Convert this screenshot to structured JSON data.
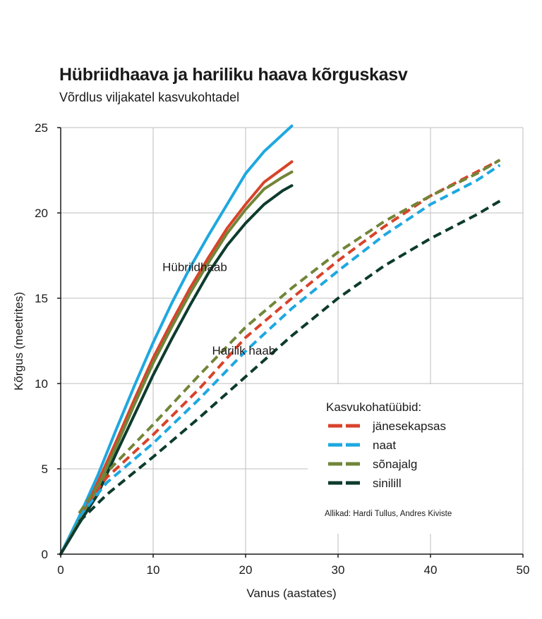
{
  "chart_data": {
    "type": "line",
    "title": "Hübriidhaava ja hariliku haava kõrguskasv",
    "subtitle": "Võrdlus viljakatel kasvukohtadel",
    "xlabel": "Vanus (aastates)",
    "ylabel": "Kõrgus (meetrites)",
    "xlim": [
      0,
      50
    ],
    "ylim": [
      0,
      25
    ],
    "xticks": [
      "0",
      "10",
      "20",
      "30",
      "40",
      "50"
    ],
    "yticks": [
      "0",
      "5",
      "10",
      "15",
      "20",
      "25"
    ],
    "grid": true,
    "legend": {
      "title": "Kasvukohatüübid:",
      "placement": "bottom-right"
    },
    "annotations": [
      {
        "text": "Hübriidhaab",
        "x": 14.5,
        "y": 16.6
      },
      {
        "text": "Harilik haab",
        "x": 19.8,
        "y": 11.7
      }
    ],
    "source": "Allikad: Hardi Tullus, Andres Kiviste",
    "series": [
      {
        "name": "jänesekapsas",
        "group": "Hübriidhaab",
        "color": "#d8432a",
        "style": "solid",
        "points": [
          [
            0,
            0
          ],
          [
            2,
            2
          ],
          [
            4,
            4.2
          ],
          [
            6,
            6.6
          ],
          [
            8,
            9.1
          ],
          [
            10,
            11.5
          ],
          [
            12,
            13.6
          ],
          [
            14,
            15.6
          ],
          [
            16,
            17.4
          ],
          [
            18,
            19.1
          ],
          [
            20,
            20.5
          ],
          [
            22,
            21.8
          ],
          [
            24,
            22.6
          ],
          [
            25,
            23
          ]
        ]
      },
      {
        "name": "naat",
        "group": "Hübriidhaab",
        "color": "#1ea8e0",
        "style": "solid",
        "points": [
          [
            0,
            0
          ],
          [
            2,
            2.2
          ],
          [
            4,
            4.6
          ],
          [
            6,
            7.3
          ],
          [
            8,
            9.9
          ],
          [
            10,
            12.4
          ],
          [
            12,
            14.7
          ],
          [
            14,
            16.8
          ],
          [
            16,
            18.7
          ],
          [
            18,
            20.5
          ],
          [
            20,
            22.3
          ],
          [
            22,
            23.6
          ],
          [
            24,
            24.6
          ],
          [
            25,
            25.1
          ]
        ]
      },
      {
        "name": "sõnajalg",
        "group": "Hübriidhaab",
        "color": "#718538",
        "style": "solid",
        "points": [
          [
            0,
            0
          ],
          [
            2,
            1.9
          ],
          [
            4,
            3.9
          ],
          [
            6,
            6.3
          ],
          [
            8,
            8.8
          ],
          [
            10,
            11.2
          ],
          [
            12,
            13.3
          ],
          [
            14,
            15.3
          ],
          [
            16,
            17.1
          ],
          [
            18,
            18.8
          ],
          [
            20,
            20.2
          ],
          [
            22,
            21.4
          ],
          [
            24,
            22.1
          ],
          [
            25,
            22.4
          ]
        ]
      },
      {
        "name": "sinilill",
        "group": "Hübriidhaab",
        "color": "#0d3b2e",
        "style": "solid",
        "points": [
          [
            0,
            0
          ],
          [
            2,
            1.8
          ],
          [
            4,
            3.5
          ],
          [
            6,
            5.9
          ],
          [
            8,
            8.2
          ],
          [
            10,
            10.5
          ],
          [
            12,
            12.6
          ],
          [
            14,
            14.6
          ],
          [
            16,
            16.5
          ],
          [
            18,
            18.1
          ],
          [
            20,
            19.4
          ],
          [
            22,
            20.5
          ],
          [
            24,
            21.3
          ],
          [
            25,
            21.6
          ]
        ]
      },
      {
        "name": "jänesekapsas",
        "group": "Harilik haab",
        "color": "#d8432a",
        "style": "dashed",
        "points": [
          [
            2,
            2.4
          ],
          [
            5,
            4.5
          ],
          [
            10,
            7
          ],
          [
            15,
            9.7
          ],
          [
            20,
            12.7
          ],
          [
            25,
            15
          ],
          [
            30,
            17.2
          ],
          [
            35,
            19.2
          ],
          [
            40,
            21
          ],
          [
            45,
            22.4
          ],
          [
            47.5,
            23.1
          ]
        ]
      },
      {
        "name": "naat",
        "group": "Harilik haab",
        "color": "#1ea8e0",
        "style": "dashed",
        "points": [
          [
            2,
            2.2
          ],
          [
            5,
            4.2
          ],
          [
            10,
            6.5
          ],
          [
            15,
            9.1
          ],
          [
            20,
            11.9
          ],
          [
            25,
            14.4
          ],
          [
            30,
            16.6
          ],
          [
            35,
            18.7
          ],
          [
            40,
            20.5
          ],
          [
            45,
            21.9
          ],
          [
            47.5,
            22.8
          ]
        ]
      },
      {
        "name": "sõnajalg",
        "group": "Harilik haab",
        "color": "#718538",
        "style": "dashed",
        "points": [
          [
            2,
            2.4
          ],
          [
            5,
            4.8
          ],
          [
            10,
            7.6
          ],
          [
            15,
            10.5
          ],
          [
            20,
            13.3
          ],
          [
            25,
            15.6
          ],
          [
            30,
            17.7
          ],
          [
            35,
            19.5
          ],
          [
            40,
            21
          ],
          [
            45,
            22.3
          ],
          [
            47.5,
            23.1
          ]
        ]
      },
      {
        "name": "sinilill",
        "group": "Harilik haab",
        "color": "#0d3b2e",
        "style": "dashed",
        "points": [
          [
            2,
            1.9
          ],
          [
            5,
            3.5
          ],
          [
            10,
            5.7
          ],
          [
            15,
            8
          ],
          [
            20,
            10.4
          ],
          [
            25,
            12.8
          ],
          [
            30,
            15
          ],
          [
            35,
            16.9
          ],
          [
            40,
            18.5
          ],
          [
            45,
            19.9
          ],
          [
            47.5,
            20.7
          ]
        ]
      }
    ]
  }
}
